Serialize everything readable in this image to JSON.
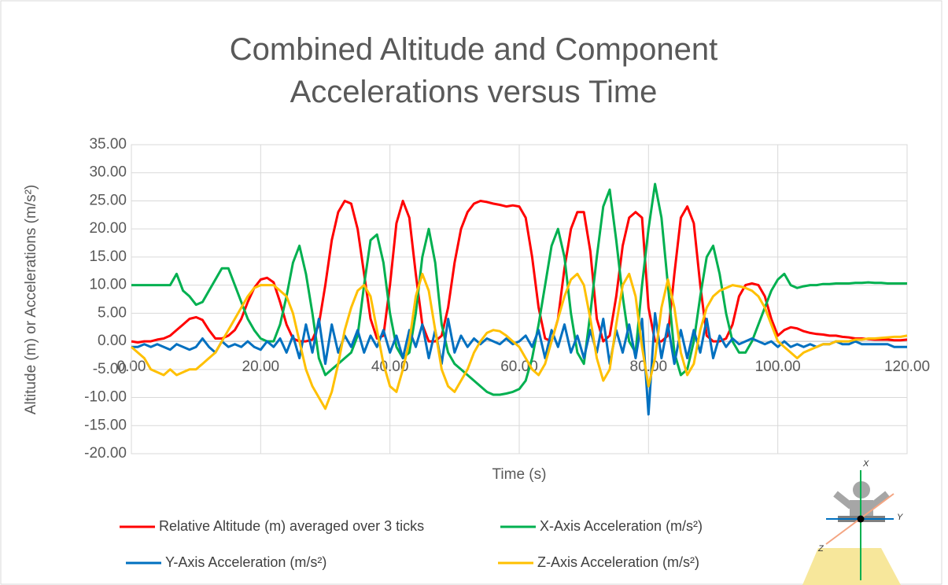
{
  "chart_data": {
    "type": "line",
    "title": "Combined Altitude and Component Accelerations versus Time",
    "x_label": "Time (s)",
    "y_label": "Altitude (m) or Accelerations (m/s²)",
    "xlim": [
      0,
      120
    ],
    "xticks": [
      {
        "value": 0,
        "label": "0.00"
      },
      {
        "value": 20,
        "label": "20.00"
      },
      {
        "value": 40,
        "label": "40.00"
      },
      {
        "value": 60,
        "label": "60.00"
      },
      {
        "value": 80,
        "label": "80.00"
      },
      {
        "value": 100,
        "label": "100.00"
      },
      {
        "value": 120,
        "label": "120.00"
      }
    ],
    "ylim": [
      -20,
      35
    ],
    "yticks": [
      {
        "value": -20,
        "label": "-20.00"
      },
      {
        "value": -15,
        "label": "-15.00"
      },
      {
        "value": -10,
        "label": "-10.00"
      },
      {
        "value": -5,
        "label": "-5.00"
      },
      {
        "value": 0,
        "label": "0.00"
      },
      {
        "value": 5,
        "label": "5.00"
      },
      {
        "value": 10,
        "label": "10.00"
      },
      {
        "value": 15,
        "label": "15.00"
      },
      {
        "value": 20,
        "label": "20.00"
      },
      {
        "value": 25,
        "label": "25.00"
      },
      {
        "value": 30,
        "label": "30.00"
      },
      {
        "value": 35,
        "label": "35.00"
      }
    ],
    "grid": true,
    "legend": "bottom",
    "x": [
      0,
      1,
      2,
      3,
      4,
      5,
      6,
      7,
      8,
      9,
      10,
      11,
      12,
      13,
      14,
      15,
      16,
      17,
      18,
      19,
      20,
      21,
      22,
      23,
      24,
      25,
      26,
      27,
      28,
      29,
      30,
      31,
      32,
      33,
      34,
      35,
      36,
      37,
      38,
      39,
      40,
      41,
      42,
      43,
      44,
      45,
      46,
      47,
      48,
      49,
      50,
      51,
      52,
      53,
      54,
      55,
      56,
      57,
      58,
      59,
      60,
      61,
      62,
      63,
      64,
      65,
      66,
      67,
      68,
      69,
      70,
      71,
      72,
      73,
      74,
      75,
      76,
      77,
      78,
      79,
      80,
      81,
      82,
      83,
      84,
      85,
      86,
      87,
      88,
      89,
      90,
      91,
      92,
      93,
      94,
      95,
      96,
      97,
      98,
      99,
      100,
      101,
      102,
      103,
      104,
      105,
      106,
      107,
      108,
      109,
      110,
      111,
      112,
      113,
      114,
      115,
      116,
      117,
      118,
      119,
      120
    ],
    "series": [
      {
        "name": "Relative Altitude (m) averaged over 3 ticks",
        "color": "#ff0000",
        "values": [
          0,
          -0.2,
          0,
          0,
          0.3,
          0.5,
          1,
          2,
          3,
          4,
          4.3,
          3.8,
          2,
          0.5,
          0.5,
          1,
          2,
          4,
          7,
          9.5,
          11,
          11.3,
          10.5,
          7,
          3,
          0.5,
          0,
          0,
          0.3,
          3,
          10,
          18,
          23,
          25,
          24.5,
          20,
          12,
          4,
          0.5,
          1,
          10,
          21,
          25,
          22,
          12,
          3,
          0,
          0,
          1,
          6,
          14,
          20,
          23,
          24.5,
          25,
          24.8,
          24.5,
          24.3,
          24,
          24.2,
          24,
          22,
          15,
          6,
          0.5,
          0,
          4,
          13,
          20,
          23,
          23,
          16,
          4,
          0,
          1,
          8,
          17,
          22,
          23,
          22,
          6,
          0,
          0,
          1,
          12,
          22,
          24,
          21,
          10,
          1,
          0,
          0,
          0.5,
          3,
          8,
          10,
          10.3,
          10,
          8,
          4,
          1,
          2,
          2.5,
          2.3,
          1.8,
          1.5,
          1.3,
          1.2,
          1,
          1,
          0.8,
          0.7,
          0.5,
          0.5,
          0.4,
          0.3,
          0.3,
          0.3,
          0.2,
          0.2,
          0.3
        ]
      },
      {
        "name": "X-Axis Acceleration (m/s²)",
        "color": "#00b050",
        "values": [
          10,
          10,
          10,
          10,
          10,
          10,
          10,
          12,
          9,
          8,
          6.5,
          7,
          9,
          11,
          13,
          13,
          10,
          7,
          4,
          2,
          0.5,
          0,
          0,
          3,
          8,
          14,
          17,
          12,
          5,
          -3,
          -6,
          -5,
          -4,
          -3,
          -2,
          1,
          10,
          18,
          19,
          14,
          5,
          -1,
          -3,
          -2,
          5,
          15,
          20,
          14,
          3,
          -2,
          -4,
          -5,
          -6,
          -7,
          -8,
          -9,
          -9.5,
          -9.5,
          -9.3,
          -9,
          -8.5,
          -7,
          -3,
          3,
          10,
          17,
          20,
          15,
          5,
          -2,
          -4,
          5,
          15,
          24,
          27,
          18,
          8,
          0,
          -2,
          10,
          20,
          28,
          22,
          10,
          -2,
          -6,
          -5,
          0,
          8,
          15,
          17,
          12,
          5,
          0,
          -2,
          -2,
          0,
          3,
          6,
          9,
          11,
          12,
          10,
          9.5,
          9.8,
          10,
          10,
          10.2,
          10.2,
          10.3,
          10.3,
          10.3,
          10.4,
          10.4,
          10.5,
          10.4,
          10.4,
          10.3,
          10.3,
          10.3,
          10.3
        ]
      },
      {
        "name": "Y-Axis Acceleration (m/s²)",
        "color": "#0070c0",
        "values": [
          -1,
          -1,
          -0.5,
          -1,
          -0.5,
          -1,
          -1.5,
          -0.5,
          -1,
          -1.5,
          -1,
          0.5,
          -1,
          -2,
          0,
          -1,
          -0.5,
          -1,
          0,
          -1,
          -1.5,
          0,
          -1,
          0.5,
          -2,
          1,
          -3,
          3,
          -2,
          4,
          -4,
          3,
          -2,
          1,
          -1,
          2,
          -2,
          1,
          -1,
          2,
          -2,
          1,
          -3,
          2,
          -1,
          3,
          -3,
          2,
          -4,
          4,
          -2,
          1,
          -1,
          0.5,
          -0.5,
          0.5,
          0,
          -0.5,
          0.5,
          -0.5,
          0,
          1,
          -1,
          2,
          -3,
          2,
          -1,
          3,
          -2,
          1,
          -3,
          2,
          -2,
          4,
          -4,
          2,
          -2,
          3,
          -3,
          4,
          -13,
          5,
          -3,
          3,
          -4,
          2,
          -3,
          2,
          -2,
          4,
          -3,
          1,
          -1,
          0.5,
          -0.5,
          0,
          0.5,
          0,
          -0.5,
          0,
          -1,
          0,
          -1,
          -0.5,
          -1,
          -0.5,
          -1,
          -0.5,
          -0.5,
          0,
          -0.5,
          -0.5,
          0,
          -0.5,
          -0.5,
          -0.5,
          -0.5,
          -0.5,
          -1,
          -1,
          -1
        ]
      },
      {
        "name": "Z-Axis Acceleration (m/s²)",
        "color": "#ffc000",
        "values": [
          -1,
          -2,
          -3,
          -5,
          -5.5,
          -6,
          -5,
          -6,
          -5.5,
          -5,
          -5,
          -4,
          -3,
          -2,
          0,
          2,
          4,
          6,
          8,
          9.5,
          10,
          10,
          10,
          9,
          8,
          5,
          0,
          -5,
          -8,
          -10,
          -12,
          -9,
          -4,
          2,
          6,
          9,
          10,
          8,
          2,
          -4,
          -8,
          -9,
          -5,
          0,
          8,
          12,
          9,
          2,
          -5,
          -8,
          -9,
          -7,
          -5,
          -2,
          0,
          1.5,
          2,
          1.8,
          1,
          0,
          -1,
          -3,
          -5,
          -6,
          -4,
          0,
          4,
          8,
          11,
          12,
          10,
          4,
          -3,
          -7,
          -5,
          3,
          10,
          12,
          8,
          -1,
          -8,
          -3,
          6,
          11,
          6,
          -2,
          -6,
          -4,
          2,
          6,
          8,
          9,
          9.5,
          10,
          9.8,
          9.5,
          9,
          8,
          6,
          3,
          0,
          -1,
          -2,
          -3,
          -2,
          -1.5,
          -1,
          -0.5,
          -0.5,
          0,
          0,
          0,
          0.3,
          0.3,
          0.5,
          0.5,
          0.6,
          0.7,
          0.8,
          0.8,
          1
        ]
      }
    ]
  },
  "diagram": {
    "axis_labels": [
      "X",
      "Y",
      "Z"
    ]
  }
}
